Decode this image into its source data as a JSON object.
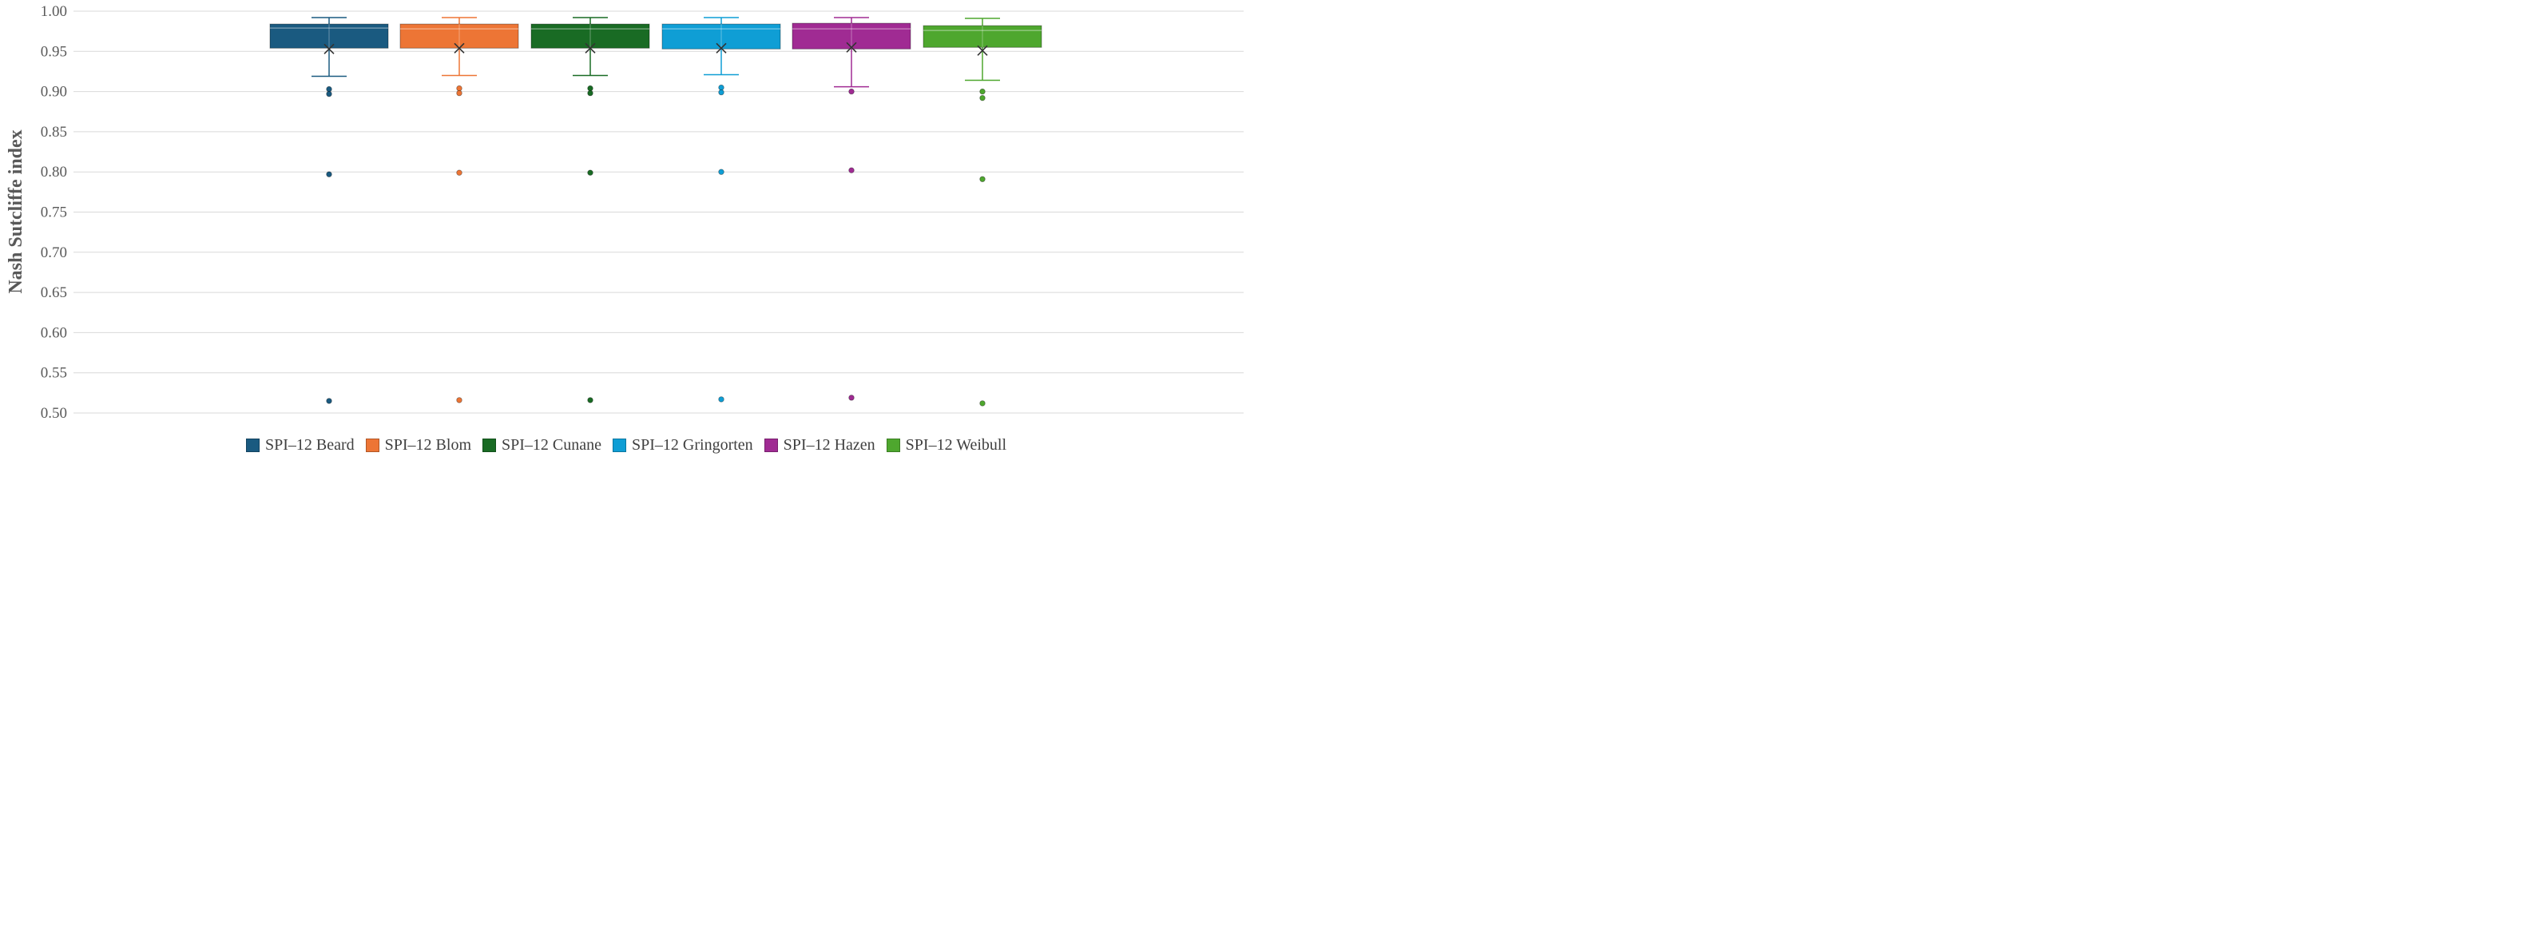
{
  "chart_data": {
    "type": "box",
    "ylabel": "Nash Sutcliffe  index",
    "ylim": [
      0.5,
      1.0
    ],
    "yticks": [
      0.5,
      0.55,
      0.6,
      0.65,
      0.7,
      0.75,
      0.8,
      0.85,
      0.9,
      0.95,
      1.0
    ],
    "ytick_labels": [
      "0.50",
      "0.55",
      "0.60",
      "0.65",
      "0.70",
      "0.75",
      "0.80",
      "0.85",
      "0.90",
      "0.95",
      "1.00"
    ],
    "grid": true,
    "legend_position": "bottom",
    "series": [
      {
        "name": "SPI–12 Beard",
        "color": "#1a5a80",
        "whisker_low": 0.919,
        "q1": 0.954,
        "median": 0.979,
        "q3": 0.984,
        "whisker_high": 0.992,
        "mean": 0.953,
        "outliers": [
          0.903,
          0.897,
          0.797,
          0.515
        ]
      },
      {
        "name": "SPI–12 Blom",
        "color": "#ed7535",
        "whisker_low": 0.92,
        "q1": 0.954,
        "median": 0.978,
        "q3": 0.984,
        "whisker_high": 0.992,
        "mean": 0.954,
        "outliers": [
          0.904,
          0.898,
          0.799,
          0.516
        ]
      },
      {
        "name": "SPI–12 Cunane",
        "color": "#196b24",
        "whisker_low": 0.92,
        "q1": 0.954,
        "median": 0.978,
        "q3": 0.984,
        "whisker_high": 0.992,
        "mean": 0.954,
        "outliers": [
          0.904,
          0.898,
          0.799,
          0.516
        ]
      },
      {
        "name": "SPI–12 Gringorten",
        "color": "#0f9ed5",
        "whisker_low": 0.921,
        "q1": 0.953,
        "median": 0.978,
        "q3": 0.984,
        "whisker_high": 0.992,
        "mean": 0.954,
        "outliers": [
          0.905,
          0.899,
          0.8,
          0.517
        ]
      },
      {
        "name": "SPI–12 Hazen",
        "color": "#a02b93",
        "whisker_low": 0.906,
        "q1": 0.953,
        "median": 0.978,
        "q3": 0.985,
        "whisker_high": 0.992,
        "mean": 0.955,
        "outliers": [
          0.9,
          0.802,
          0.519
        ]
      },
      {
        "name": "SPI–12 Weibull",
        "color": "#4ea72e",
        "whisker_low": 0.914,
        "q1": 0.955,
        "median": 0.976,
        "q3": 0.982,
        "whisker_high": 0.991,
        "mean": 0.951,
        "outliers": [
          0.9,
          0.892,
          0.791,
          0.512
        ]
      }
    ]
  }
}
